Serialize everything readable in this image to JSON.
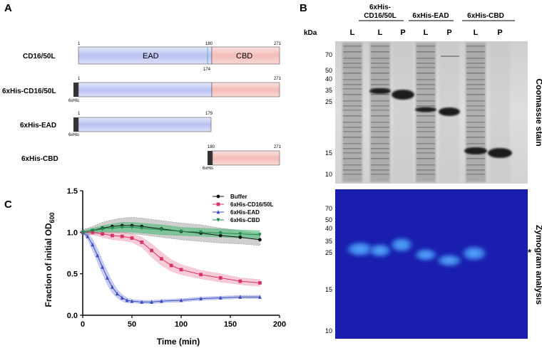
{
  "panelA": {
    "label": "A",
    "constructs": [
      {
        "name": "CD16/50L",
        "start": "1",
        "end": "271",
        "split": "180",
        "split2": "174",
        "domain1": "EAD",
        "domain2": "CBD"
      },
      {
        "name": "6xHis-CD16/50L",
        "start": "1",
        "end": "271",
        "tag": "6xHis"
      },
      {
        "name": "6xHis-EAD",
        "start": "1",
        "end": "179",
        "tag": "6xHis"
      },
      {
        "name": "6xHis-CBD",
        "start": "180",
        "end": "271",
        "tag": "6xHis"
      }
    ],
    "colors": {
      "ead": "#c8cef5",
      "cbd": "#f7c9c6",
      "tag": "#333333"
    }
  },
  "panelB": {
    "label": "B",
    "kda_label": "kDa",
    "groups": [
      "6xHis-\nCD16/50L",
      "6xHis-EAD",
      "6xHis-CBD"
    ],
    "group_line1": "6xHis-",
    "group_line2": "CD16/50L",
    "group2": "6xHis-EAD",
    "group3": "6xHis-CBD",
    "lanes": [
      "L",
      "L",
      "P",
      "L",
      "P",
      "L",
      "P"
    ],
    "markers_top": [
      "70",
      "50",
      "40",
      "35",
      "25",
      "15",
      "10"
    ],
    "markers_bottom": [
      "70",
      "50",
      "40",
      "35",
      "25",
      "15",
      "10"
    ],
    "top_title": "Coomassie stain",
    "bottom_title": "Zymogram analysis",
    "asterisk": "*"
  },
  "panelC": {
    "label": "C",
    "ylabel_main": "Fraction of initial OD",
    "ylabel_sub": "600",
    "chart_data": {
      "type": "line",
      "xlabel": "Time (min)",
      "ylabel": "Fraction of initial OD600",
      "xlim": [
        0,
        200
      ],
      "ylim": [
        0,
        1.5
      ],
      "xticks": [
        0,
        50,
        100,
        150,
        200
      ],
      "yticks": [
        0.0,
        0.5,
        1.0,
        1.5
      ],
      "xtick_labels": [
        "0",
        "50",
        "100",
        "150",
        "200"
      ],
      "ytick_labels": [
        "0.0",
        "0.5",
        "1.0",
        "1.5"
      ],
      "series": [
        {
          "name": "Buffer",
          "color": "#111111",
          "marker": "circle",
          "fill": "#a9a9a9",
          "x": [
            0,
            10,
            20,
            30,
            40,
            50,
            60,
            80,
            100,
            120,
            140,
            160,
            180
          ],
          "y": [
            1.0,
            1.02,
            1.05,
            1.07,
            1.08,
            1.08,
            1.07,
            1.04,
            1.01,
            0.99,
            0.96,
            0.94,
            0.91
          ],
          "err": [
            0.03,
            0.05,
            0.07,
            0.08,
            0.09,
            0.1,
            0.1,
            0.1,
            0.1,
            0.1,
            0.09,
            0.08,
            0.07
          ]
        },
        {
          "name": "6xHis-CD16/50L",
          "color": "#d6336c",
          "marker": "square",
          "fill": "#f4a3b8",
          "x": [
            0,
            10,
            20,
            30,
            40,
            50,
            60,
            70,
            80,
            90,
            100,
            120,
            140,
            160,
            180
          ],
          "y": [
            1.0,
            1.0,
            0.98,
            0.96,
            0.95,
            0.93,
            0.88,
            0.78,
            0.68,
            0.6,
            0.55,
            0.49,
            0.45,
            0.41,
            0.39
          ],
          "err": [
            0.02,
            0.03,
            0.04,
            0.05,
            0.05,
            0.05,
            0.06,
            0.08,
            0.08,
            0.07,
            0.06,
            0.05,
            0.05,
            0.04,
            0.04
          ]
        },
        {
          "name": "6xHis-EAD",
          "color": "#3b4cc0",
          "marker": "triangle-up",
          "fill": "#9aa3e8",
          "x": [
            0,
            5,
            10,
            15,
            20,
            25,
            30,
            35,
            40,
            45,
            50,
            60,
            70,
            80,
            100,
            120,
            140,
            160,
            180
          ],
          "y": [
            1.0,
            0.95,
            0.85,
            0.72,
            0.58,
            0.45,
            0.34,
            0.26,
            0.21,
            0.18,
            0.17,
            0.16,
            0.16,
            0.17,
            0.18,
            0.2,
            0.21,
            0.22,
            0.22
          ],
          "err": [
            0.02,
            0.04,
            0.07,
            0.08,
            0.08,
            0.08,
            0.07,
            0.05,
            0.04,
            0.03,
            0.02,
            0.02,
            0.02,
            0.02,
            0.02,
            0.02,
            0.02,
            0.02,
            0.02
          ]
        },
        {
          "name": "6xHis-CBD",
          "color": "#1f8a4c",
          "marker": "triangle-down",
          "fill": "#3cba6e",
          "x": [
            0,
            10,
            20,
            30,
            40,
            50,
            60,
            80,
            100,
            120,
            140,
            160,
            180
          ],
          "y": [
            1.0,
            1.02,
            1.04,
            1.05,
            1.06,
            1.06,
            1.05,
            1.03,
            1.01,
            1.0,
            0.99,
            0.98,
            0.97
          ],
          "err": [
            0.02,
            0.03,
            0.04,
            0.05,
            0.06,
            0.06,
            0.06,
            0.06,
            0.05,
            0.05,
            0.05,
            0.05,
            0.05
          ]
        }
      ]
    }
  }
}
